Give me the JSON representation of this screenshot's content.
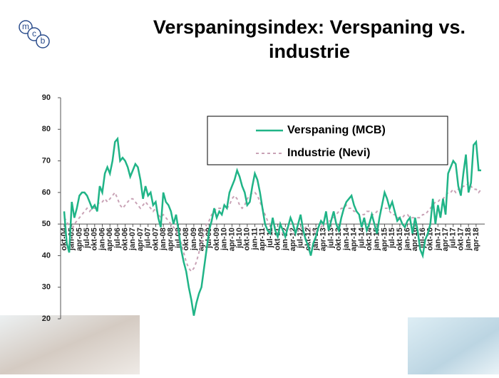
{
  "logo": [
    "m",
    "c",
    "b"
  ],
  "chart_data": {
    "type": "line",
    "title": "Verspaningsindex: Verspaning vs. industrie",
    "categories": [
      "okt-04",
      null,
      null,
      "jan-05",
      null,
      null,
      "apr-05",
      null,
      null,
      "jul-05",
      null,
      null,
      "okt-05",
      null,
      null,
      "jan-06",
      null,
      null,
      "apr-06",
      null,
      null,
      "jul-06",
      null,
      null,
      "okt-06",
      null,
      null,
      "jan-07",
      null,
      null,
      "apr-07",
      null,
      null,
      "jul-07",
      null,
      null,
      "okt-07",
      null,
      null,
      "jan-08",
      null,
      null,
      "apr-08",
      null,
      null,
      "jul-08",
      null,
      null,
      "okt-08",
      null,
      null,
      "jan-09",
      null,
      null,
      "apr-09",
      null,
      null,
      "jul-09",
      null,
      null,
      "okt-09",
      null,
      null,
      "jan-10",
      null,
      null,
      "apr-10",
      null,
      null,
      "jul-10",
      null,
      null,
      "okt-10",
      null,
      null,
      "jan-11",
      null,
      null,
      "apr-11",
      null,
      null,
      "jul-11",
      null,
      null,
      "okt-11",
      null,
      null,
      "jan-12",
      null,
      null,
      "apr-12",
      null,
      null,
      "jul-12",
      null,
      null,
      "okt-12",
      null,
      null,
      "jan-13",
      null,
      null,
      "apr-13",
      null,
      null,
      "jul-13",
      null,
      null,
      "okt-13",
      null,
      null,
      "jan-14",
      null,
      null,
      "apr-14",
      null,
      null,
      "jul-14",
      null,
      null,
      "okt-14",
      null,
      null,
      "jan-15",
      null,
      null,
      "apr-15",
      null,
      null,
      "jul-15",
      null,
      null,
      "okt-15",
      null,
      null,
      "jan-16",
      null,
      null,
      "apr-16",
      null,
      null,
      "jul-16",
      null,
      null,
      "okt-16",
      null,
      null,
      "jan-17",
      null,
      null,
      "apr-17",
      null,
      null,
      "jul-17",
      null,
      null,
      "okt-17",
      null,
      null,
      "jan-18",
      null,
      null,
      "apr-18",
      null,
      null
    ],
    "series": [
      {
        "name": "Verspaning (MCB)",
        "color": "#20b487",
        "dash": false,
        "values": [
          54,
          44,
          41,
          57,
          52,
          55,
          59,
          60,
          60,
          59,
          57,
          55,
          56,
          54,
          62,
          60,
          66,
          68,
          66,
          70,
          76,
          77,
          70,
          71,
          70,
          68,
          65,
          67,
          69,
          68,
          64,
          58,
          62,
          59,
          60,
          56,
          57,
          52,
          49,
          60,
          57,
          56,
          54,
          50,
          53,
          48,
          42,
          38,
          35,
          30,
          26,
          21,
          25,
          28,
          30,
          36,
          42,
          48,
          51,
          55,
          52,
          54,
          53,
          56,
          55,
          60,
          62,
          64,
          67,
          65,
          62,
          60,
          56,
          57,
          62,
          66,
          64,
          60,
          55,
          50,
          48,
          47,
          52,
          48,
          46,
          50,
          48,
          46,
          49,
          52,
          50,
          47,
          50,
          53,
          48,
          45,
          43,
          40,
          44,
          46,
          49,
          51,
          50,
          54,
          48,
          51,
          54,
          50,
          48,
          52,
          55,
          57,
          58,
          59,
          56,
          54,
          53,
          49,
          52,
          48,
          50,
          53,
          50,
          47,
          52,
          56,
          60,
          58,
          55,
          57,
          54,
          51,
          52,
          50,
          49,
          51,
          52,
          47,
          52,
          48,
          42,
          40,
          45,
          47,
          50,
          58,
          50,
          56,
          52,
          58,
          53,
          66,
          68,
          70,
          69,
          62,
          59,
          66,
          72,
          60,
          63,
          75,
          76,
          67,
          67
        ]
      },
      {
        "name": "Industrie (Nevi)",
        "color": "#c9a3b6",
        "dash": true,
        "values": [
          52,
          51,
          49,
          48,
          50,
          51,
          52,
          53,
          54,
          55,
          54,
          55,
          55,
          56,
          57,
          57,
          58,
          57,
          58,
          59,
          60,
          58,
          56,
          55,
          56,
          57,
          58,
          58,
          57,
          56,
          55,
          56,
          57,
          56,
          55,
          54,
          55,
          53,
          52,
          53,
          52,
          51,
          50,
          49,
          48,
          46,
          44,
          41,
          38,
          36,
          35,
          36,
          38,
          41,
          44,
          47,
          50,
          51,
          53,
          54,
          55,
          55,
          55,
          56,
          55,
          56,
          58,
          59,
          58,
          56,
          55,
          56,
          58,
          59,
          60,
          60,
          59,
          57,
          55,
          53,
          51,
          50,
          50,
          49,
          48,
          48,
          47,
          48,
          49,
          48,
          47,
          47,
          48,
          49,
          48,
          49,
          49,
          48,
          48,
          47,
          48,
          49,
          50,
          50,
          51,
          51,
          52,
          53,
          54,
          55,
          55,
          56,
          55,
          55,
          54,
          54,
          53,
          53,
          53,
          54,
          54,
          53,
          53,
          54,
          54,
          55,
          55,
          55,
          54,
          53,
          53,
          52,
          52,
          52,
          53,
          53,
          52,
          52,
          52,
          52,
          52,
          53,
          53,
          54,
          55,
          56,
          57,
          57,
          58,
          58,
          59,
          60,
          60,
          61,
          60,
          61,
          61,
          62,
          62,
          63,
          62,
          61,
          61,
          60,
          61
        ]
      }
    ],
    "ylim": [
      20,
      90
    ],
    "yticks": [
      20,
      30,
      40,
      50,
      60,
      70,
      80,
      90
    ],
    "x_axis_crosses": 50,
    "grid": false,
    "legend": "upper right"
  }
}
